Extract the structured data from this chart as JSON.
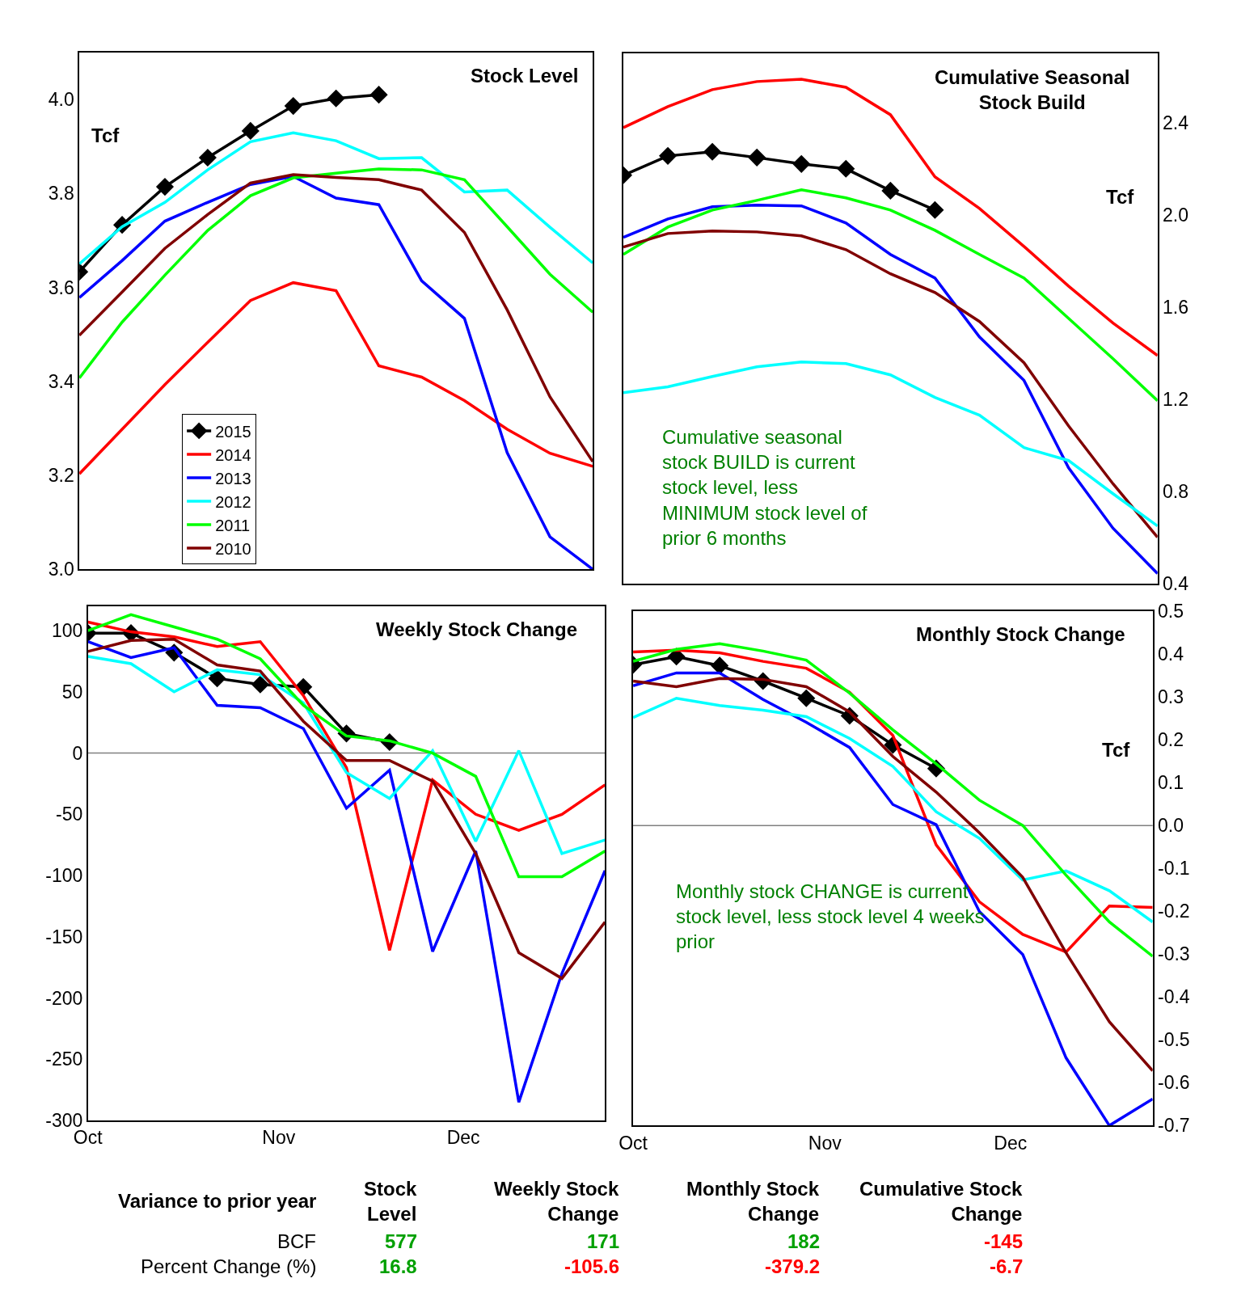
{
  "chart_data": [
    {
      "type": "line",
      "title": "Stock Level",
      "ylabel": "Tcf",
      "categories": [
        null,
        null,
        null,
        null,
        null,
        null,
        null,
        null,
        null,
        null,
        null,
        null,
        null
      ],
      "ylim": [
        3.0,
        4.1
      ],
      "yticks": [
        {
          "value": 3.0,
          "label": "3.0"
        },
        3.2,
        3.4,
        3.6,
        3.8,
        {
          "value": 4.0,
          "label": "4.0"
        }
      ],
      "tick_labels": "y",
      "legend": "bottom left",
      "series": [
        {
          "name": "2015",
          "color": "#000000",
          "marker": "diamond",
          "values": [
            3.633,
            3.733,
            3.814,
            3.876,
            3.933,
            3.986,
            4.002,
            4.01,
            null,
            null,
            null,
            null,
            null
          ]
        },
        {
          "name": "2014",
          "color": "#ff0000",
          "values": [
            3.203,
            3.298,
            3.393,
            3.483,
            3.572,
            3.61,
            3.593,
            3.433,
            3.409,
            3.359,
            3.298,
            3.247,
            3.219
          ]
        },
        {
          "name": "2013",
          "color": "#0000ff",
          "values": [
            3.578,
            3.657,
            3.741,
            3.781,
            3.819,
            3.836,
            3.79,
            3.776,
            3.614,
            3.534,
            3.248,
            3.069,
            3.0
          ]
        },
        {
          "name": "2012",
          "color": "#00ffff",
          "values": [
            3.65,
            3.729,
            3.781,
            3.85,
            3.91,
            3.929,
            3.912,
            3.874,
            3.876,
            3.803,
            3.807,
            3.728,
            3.652
          ]
        },
        {
          "name": "2011",
          "color": "#00ff00",
          "values": [
            3.407,
            3.526,
            3.626,
            3.721,
            3.795,
            3.833,
            3.843,
            3.852,
            3.85,
            3.829,
            3.729,
            3.628,
            3.547
          ]
        },
        {
          "name": "2010",
          "color": "#800000",
          "values": [
            3.498,
            3.59,
            3.683,
            3.755,
            3.822,
            3.84,
            3.834,
            3.829,
            3.807,
            3.717,
            3.552,
            3.367,
            3.229
          ]
        }
      ]
    },
    {
      "type": "line",
      "title": "Cumulative Seasonal\nStock Build",
      "ylabel": "Tcf",
      "categories": [
        null,
        null,
        null,
        null,
        null,
        null,
        null,
        null,
        null,
        null,
        null,
        null,
        null
      ],
      "ylim": [
        0.4,
        2.7
      ],
      "yticks": [
        0.4,
        0.8,
        1.2,
        1.6,
        {
          "value": 2.0,
          "label": "2.0"
        },
        2.4
      ],
      "tick_labels": "y",
      "annotations": [
        "Cumulative seasonal\nstock BUILD is current\nstock level, less\nMINIMUM stock level of\nprior 6 months"
      ],
      "series": [
        {
          "color": "#ff0000",
          "values": [
            2.379,
            2.47,
            2.544,
            2.579,
            2.589,
            2.554,
            2.435,
            2.165,
            2.028,
            1.863,
            1.691,
            1.53,
            1.389
          ]
        },
        {
          "color": "#000000",
          "marker": "diamond",
          "values": [
            2.172,
            2.256,
            2.274,
            2.249,
            2.221,
            2.2,
            2.105,
            2.021,
            null,
            null,
            null,
            null,
            null
          ]
        },
        {
          "color": "#0000ff",
          "values": [
            1.902,
            1.982,
            2.035,
            2.042,
            2.039,
            1.965,
            1.828,
            1.726,
            1.47,
            1.281,
            0.902,
            0.639,
            0.442
          ]
        },
        {
          "color": "#00ff00",
          "values": [
            1.828,
            1.947,
            2.021,
            2.063,
            2.109,
            2.074,
            2.021,
            1.933,
            1.828,
            1.726,
            1.551,
            1.375,
            1.193
          ]
        },
        {
          "color": "#800000",
          "values": [
            1.86,
            1.919,
            1.93,
            1.926,
            1.909,
            1.849,
            1.744,
            1.663,
            1.537,
            1.358,
            1.084,
            0.832,
            0.6
          ]
        },
        {
          "color": "#00ffff",
          "values": [
            1.228,
            1.253,
            1.298,
            1.34,
            1.361,
            1.354,
            1.305,
            1.207,
            1.13,
            0.989,
            0.933,
            0.789,
            0.649
          ]
        }
      ]
    },
    {
      "type": "line",
      "title": "Weekly Stock Change",
      "x": [
        "--10-01",
        "--10-08",
        "--10-15",
        "--10-22",
        "--10-29",
        "--11-05",
        "--11-12",
        "--11-19",
        "--11-26",
        "--12-03",
        "--12-10",
        "--12-17",
        "--12-24"
      ],
      "xlim": [
        "--10-01",
        "--12-24"
      ],
      "xticks": [
        {
          "value": "--10-01",
          "label": "Oct"
        },
        {
          "value": "--11-01",
          "label": "Nov"
        },
        {
          "value": "--12-01",
          "label": "Dec"
        }
      ],
      "ylim": [
        -300,
        120
      ],
      "yticks": [
        -300,
        -250,
        -200,
        -150,
        -100,
        -50,
        0,
        50,
        100
      ],
      "ref_lines": [
        {
          "axis": "y",
          "value": 0,
          "color": "#808080"
        }
      ],
      "series": [
        {
          "color": "#000000",
          "marker": "diamond",
          "values": [
            98,
            98,
            82,
            61,
            56,
            54,
            16,
            9,
            null,
            null,
            null,
            null,
            null
          ]
        },
        {
          "color": "#ff0000",
          "values": [
            107,
            99,
            95,
            87,
            91,
            47,
            -12,
            -161,
            -22,
            -50,
            -63,
            -50,
            -26
          ]
        },
        {
          "color": "#0000ff",
          "values": [
            91,
            78,
            86,
            39,
            37,
            20,
            -45,
            -14,
            -162,
            -80,
            -285,
            -180,
            -96
          ]
        },
        {
          "color": "#00ffff",
          "values": [
            79,
            73,
            50,
            68,
            64,
            41,
            -16,
            -37,
            2,
            -72,
            2,
            -82,
            -71
          ]
        },
        {
          "color": "#00ff00",
          "values": [
            100,
            113,
            103,
            93,
            77,
            39,
            14,
            10,
            0,
            -19,
            -101,
            -101,
            -80
          ]
        },
        {
          "color": "#800000",
          "values": [
            83,
            92,
            93,
            72,
            67,
            26,
            -6,
            -6,
            -23,
            -82,
            -163,
            -184,
            -138
          ]
        }
      ]
    },
    {
      "type": "line",
      "title": "Monthly Stock Change",
      "y2label": "Tcf",
      "x": [
        "--10-01",
        "--10-08",
        "--10-15",
        "--10-22",
        "--10-29",
        "--11-05",
        "--11-12",
        "--11-19",
        "--11-26",
        "--12-03",
        "--12-10",
        "--12-17",
        "--12-24"
      ],
      "xlim": [
        "--10-01",
        "--12-24"
      ],
      "xticks": [
        {
          "value": "--10-01",
          "label": "Oct"
        },
        {
          "value": "--11-01",
          "label": "Nov"
        },
        {
          "value": "--12-01",
          "label": "Dec"
        }
      ],
      "y2lim": [
        -0.7,
        0.5
      ],
      "y2ticks": [
        -0.7,
        -0.6,
        -0.5,
        -0.4,
        -0.3,
        -0.2,
        -0.1,
        {
          "value": 0,
          "label": "0.0"
        },
        0.1,
        0.2,
        0.3,
        0.4,
        0.5
      ],
      "ref_lines": [
        {
          "axis": "y2",
          "value": 0,
          "color": "#808080"
        }
      ],
      "annotations": [
        "Monthly stock CHANGE is current\nstock level, less stock level 4 weeks\nprior"
      ],
      "series": [
        {
          "color": "#000000",
          "axis": "y2",
          "marker": "diamond",
          "values": [
            0.375,
            0.394,
            0.373,
            0.337,
            0.297,
            0.256,
            0.188,
            0.133,
            null,
            null,
            null,
            null,
            null
          ]
        },
        {
          "color": "#ff0000",
          "axis": "y2",
          "values": [
            0.405,
            0.409,
            0.403,
            0.383,
            0.367,
            0.311,
            0.21,
            -0.045,
            -0.178,
            -0.254,
            -0.295,
            -0.188,
            -0.191
          ]
        },
        {
          "color": "#0000ff",
          "axis": "y2",
          "values": [
            0.326,
            0.356,
            0.356,
            0.294,
            0.241,
            0.182,
            0.049,
            0.002,
            -0.201,
            -0.301,
            -0.542,
            -0.7,
            -0.638
          ]
        },
        {
          "color": "#00ffff",
          "axis": "y2",
          "values": [
            0.252,
            0.297,
            0.28,
            0.269,
            0.254,
            0.203,
            0.138,
            0.032,
            -0.03,
            -0.127,
            -0.106,
            -0.152,
            -0.225
          ]
        },
        {
          "color": "#00ff00",
          "axis": "y2",
          "values": [
            0.383,
            0.411,
            0.424,
            0.407,
            0.386,
            0.309,
            0.223,
            0.144,
            0.059,
            0.0,
            -0.116,
            -0.225,
            -0.305
          ]
        },
        {
          "color": "#800000",
          "axis": "y2",
          "values": [
            0.337,
            0.324,
            0.343,
            0.341,
            0.324,
            0.265,
            0.161,
            0.078,
            -0.017,
            -0.121,
            -0.297,
            -0.458,
            -0.572
          ]
        }
      ]
    },
    {
      "type": "other",
      "title": "Variance to prior year",
      "categories": [
        "Stock Level",
        "Weekly Stock Change",
        "Monthly Stock Change",
        "Cumulative Stock Change"
      ],
      "data_labels": true,
      "series": [
        {
          "name": "BCF",
          "values": [
            577,
            171,
            182,
            -145
          ],
          "colors": [
            "#00a000",
            "#00a000",
            "#00a000",
            "#ff0000"
          ]
        },
        {
          "name": "Percent Change (%)",
          "values": [
            16.8,
            -105.6,
            -379.2,
            -6.7
          ],
          "colors": [
            "#00a000",
            "#ff0000",
            "#ff0000",
            "#ff0000"
          ]
        }
      ]
    }
  ]
}
